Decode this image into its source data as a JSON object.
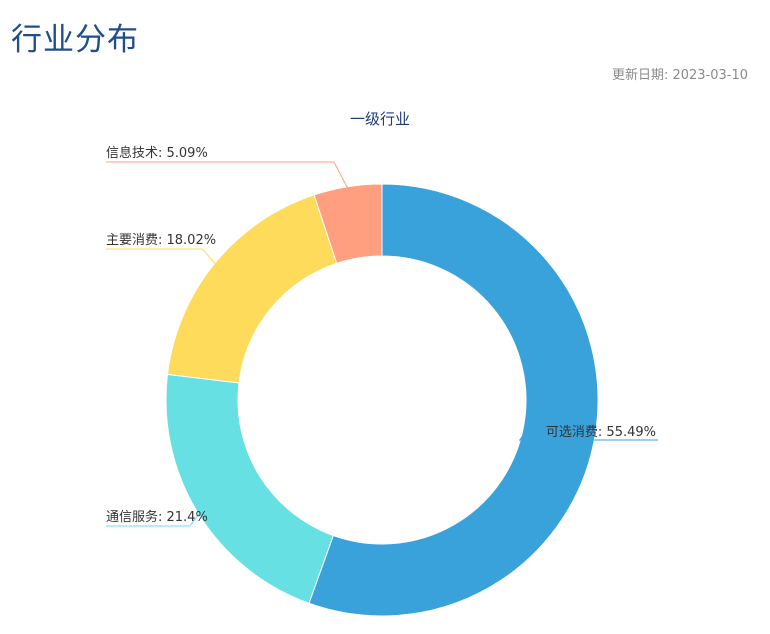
{
  "header": {
    "title": "行业分布",
    "update_date": "更新日期: 2023-03-10"
  },
  "chart_data": {
    "type": "pie",
    "donut": true,
    "title": "一级行业",
    "slices": [
      {
        "label": "可选消费",
        "value": 55.49,
        "display": "可选消费: 55.49%",
        "color": "#3aa2da"
      },
      {
        "label": "通信服务",
        "value": 21.4,
        "display": "通信服务: 21.4%",
        "color": "#67e0e3"
      },
      {
        "label": "主要消费",
        "value": 18.02,
        "display": "主要消费: 18.02%",
        "color": "#ffdb5c"
      },
      {
        "label": "信息技术",
        "value": 5.09,
        "display": "信息技术: 5.09%",
        "color": "#ff9f7f"
      }
    ]
  }
}
